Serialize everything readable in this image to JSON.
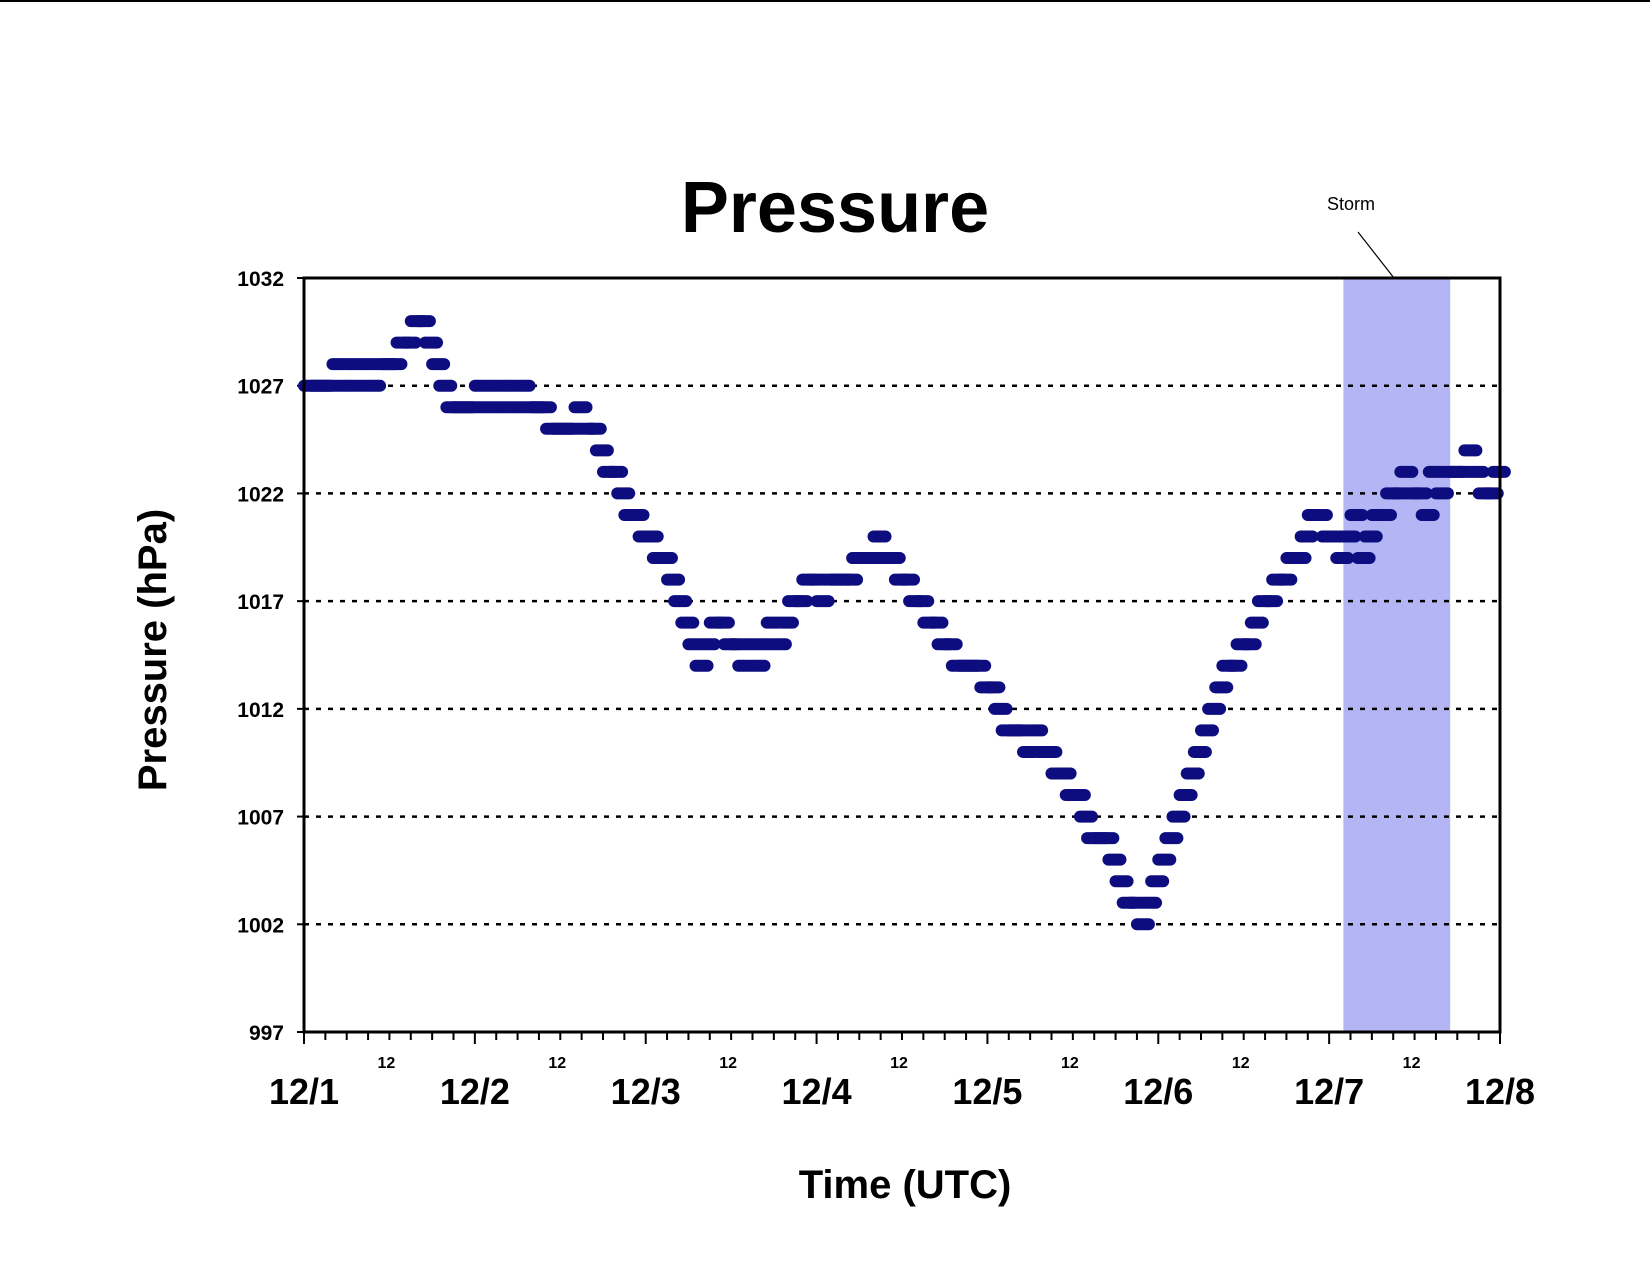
{
  "chart_data": {
    "type": "scatter",
    "title": "Pressure",
    "xlabel": "Time (UTC)",
    "ylabel": "Pressure (hPa)",
    "ylim": [
      997,
      1032
    ],
    "yticks": [
      "997",
      "1002",
      "1007",
      "1012",
      "1017",
      "1022",
      "1027",
      "1032"
    ],
    "y_gridlines": [
      1002,
      1007,
      1012,
      1017,
      1022,
      1027
    ],
    "grid": "horizontal dashed",
    "xlim": [
      "12/1 00",
      "12/8 00"
    ],
    "x_date_labels": [
      "12/1",
      "12/2",
      "12/3",
      "12/4",
      "12/5",
      "12/6",
      "12/7",
      "12/8"
    ],
    "x_hour_label": "12",
    "marker_color": "#0d0d80",
    "storm_shading": {
      "label": "Storm",
      "start": "12/7 02",
      "end": "12/7 17",
      "color": "#b3b5f5"
    },
    "series": [
      {
        "points": [
          [
            "12/1 00",
            1027
          ],
          [
            "12/1 01",
            1027
          ],
          [
            "12/1 02",
            1027
          ],
          [
            "12/1 03",
            1027
          ],
          [
            "12/1 04",
            1028
          ],
          [
            "12/1 05",
            1027
          ],
          [
            "12/1 06",
            1028
          ],
          [
            "12/1 07",
            1027
          ],
          [
            "12/1 08",
            1028
          ],
          [
            "12/1 09",
            1027
          ],
          [
            "12/1 10",
            1028
          ],
          [
            "12/1 11",
            1028
          ],
          [
            "12/1 12",
            1028
          ],
          [
            "12/1 13",
            1029
          ],
          [
            "12/1 14",
            1029
          ],
          [
            "12/1 15",
            1030
          ],
          [
            "12/1 16",
            1030
          ],
          [
            "12/1 17",
            1029
          ],
          [
            "12/1 18",
            1028
          ],
          [
            "12/1 19",
            1027
          ],
          [
            "12/1 20",
            1026
          ],
          [
            "12/1 21",
            1026
          ],
          [
            "12/1 22",
            1026
          ],
          [
            "12/1 23",
            1026
          ],
          [
            "12/2 00",
            1027
          ],
          [
            "12/2 01",
            1026
          ],
          [
            "12/2 02",
            1027
          ],
          [
            "12/2 03",
            1026
          ],
          [
            "12/2 04",
            1027
          ],
          [
            "12/2 05",
            1026
          ],
          [
            "12/2 06",
            1027
          ],
          [
            "12/2 07",
            1026
          ],
          [
            "12/2 08",
            1026
          ],
          [
            "12/2 09",
            1026
          ],
          [
            "12/2 10",
            1025
          ],
          [
            "12/2 11",
            1025
          ],
          [
            "12/2 12",
            1025
          ],
          [
            "12/2 13",
            1025
          ],
          [
            "12/2 14",
            1026
          ],
          [
            "12/2 15",
            1025
          ],
          [
            "12/2 16",
            1025
          ],
          [
            "12/2 17",
            1024
          ],
          [
            "12/2 18",
            1023
          ],
          [
            "12/2 19",
            1023
          ],
          [
            "12/2 20",
            1022
          ],
          [
            "12/2 21",
            1021
          ],
          [
            "12/2 22",
            1021
          ],
          [
            "12/2 23",
            1020
          ],
          [
            "12/3 00",
            1020
          ],
          [
            "12/3 01",
            1019
          ],
          [
            "12/3 02",
            1019
          ],
          [
            "12/3 03",
            1018
          ],
          [
            "12/3 04",
            1017
          ],
          [
            "12/3 05",
            1016
          ],
          [
            "12/3 06",
            1015
          ],
          [
            "12/3 07",
            1014
          ],
          [
            "12/3 08",
            1015
          ],
          [
            "12/3 09",
            1016
          ],
          [
            "12/3 10",
            1016
          ],
          [
            "12/3 11",
            1015
          ],
          [
            "12/3 12",
            1015
          ],
          [
            "12/3 13",
            1014
          ],
          [
            "12/3 14",
            1015
          ],
          [
            "12/3 15",
            1014
          ],
          [
            "12/3 16",
            1015
          ],
          [
            "12/3 17",
            1016
          ],
          [
            "12/3 18",
            1015
          ],
          [
            "12/3 19",
            1016
          ],
          [
            "12/3 20",
            1017
          ],
          [
            "12/3 21",
            1017
          ],
          [
            "12/3 22",
            1018
          ],
          [
            "12/3 23",
            1018
          ],
          [
            "12/4 00",
            1017
          ],
          [
            "12/4 01",
            1018
          ],
          [
            "12/4 02",
            1018
          ],
          [
            "12/4 03",
            1018
          ],
          [
            "12/4 04",
            1018
          ],
          [
            "12/4 05",
            1019
          ],
          [
            "12/4 06",
            1019
          ],
          [
            "12/4 07",
            1019
          ],
          [
            "12/4 08",
            1020
          ],
          [
            "12/4 09",
            1019
          ],
          [
            "12/4 10",
            1019
          ],
          [
            "12/4 11",
            1018
          ],
          [
            "12/4 12",
            1018
          ],
          [
            "12/4 13",
            1017
          ],
          [
            "12/4 14",
            1017
          ],
          [
            "12/4 15",
            1016
          ],
          [
            "12/4 16",
            1016
          ],
          [
            "12/4 17",
            1015
          ],
          [
            "12/4 18",
            1015
          ],
          [
            "12/4 19",
            1014
          ],
          [
            "12/4 20",
            1014
          ],
          [
            "12/4 21",
            1014
          ],
          [
            "12/4 22",
            1014
          ],
          [
            "12/4 23",
            1013
          ],
          [
            "12/5 00",
            1013
          ],
          [
            "12/5 01",
            1012
          ],
          [
            "12/5 02",
            1011
          ],
          [
            "12/5 03",
            1011
          ],
          [
            "12/5 04",
            1011
          ],
          [
            "12/5 05",
            1010
          ],
          [
            "12/5 06",
            1011
          ],
          [
            "12/5 07",
            1010
          ],
          [
            "12/5 08",
            1010
          ],
          [
            "12/5 09",
            1009
          ],
          [
            "12/5 10",
            1009
          ],
          [
            "12/5 11",
            1008
          ],
          [
            "12/5 12",
            1008
          ],
          [
            "12/5 13",
            1007
          ],
          [
            "12/5 14",
            1006
          ],
          [
            "12/5 15",
            1006
          ],
          [
            "12/5 16",
            1006
          ],
          [
            "12/5 17",
            1005
          ],
          [
            "12/5 18",
            1004
          ],
          [
            "12/5 19",
            1003
          ],
          [
            "12/5 20",
            1003
          ],
          [
            "12/5 21",
            1002
          ],
          [
            "12/5 22",
            1003
          ],
          [
            "12/5 23",
            1004
          ],
          [
            "12/6 00",
            1005
          ],
          [
            "12/6 01",
            1006
          ],
          [
            "12/6 02",
            1007
          ],
          [
            "12/6 03",
            1008
          ],
          [
            "12/6 04",
            1009
          ],
          [
            "12/6 05",
            1010
          ],
          [
            "12/6 06",
            1011
          ],
          [
            "12/6 07",
            1012
          ],
          [
            "12/6 08",
            1013
          ],
          [
            "12/6 09",
            1014
          ],
          [
            "12/6 10",
            1014
          ],
          [
            "12/6 11",
            1015
          ],
          [
            "12/6 12",
            1015
          ],
          [
            "12/6 13",
            1016
          ],
          [
            "12/6 14",
            1017
          ],
          [
            "12/6 15",
            1017
          ],
          [
            "12/6 16",
            1018
          ],
          [
            "12/6 17",
            1018
          ],
          [
            "12/6 18",
            1019
          ],
          [
            "12/6 19",
            1019
          ],
          [
            "12/6 20",
            1020
          ],
          [
            "12/6 21",
            1021
          ],
          [
            "12/6 22",
            1021
          ],
          [
            "12/6 23",
            1020
          ],
          [
            "12/7 00",
            1020
          ],
          [
            "12/7 01",
            1019
          ],
          [
            "12/7 02",
            1020
          ],
          [
            "12/7 03",
            1021
          ],
          [
            "12/7 04",
            1019
          ],
          [
            "12/7 05",
            1020
          ],
          [
            "12/7 06",
            1021
          ],
          [
            "12/7 07",
            1021
          ],
          [
            "12/7 08",
            1022
          ],
          [
            "12/7 09",
            1022
          ],
          [
            "12/7 10",
            1023
          ],
          [
            "12/7 11",
            1022
          ],
          [
            "12/7 12",
            1022
          ],
          [
            "12/7 13",
            1021
          ],
          [
            "12/7 14",
            1023
          ],
          [
            "12/7 15",
            1022
          ],
          [
            "12/7 16",
            1023
          ],
          [
            "12/7 17",
            1023
          ],
          [
            "12/7 18",
            1023
          ],
          [
            "12/7 19",
            1024
          ],
          [
            "12/7 20",
            1023
          ],
          [
            "12/7 21",
            1022
          ],
          [
            "12/7 22",
            1022
          ],
          [
            "12/7 23",
            1023
          ],
          [
            "12/8 00",
            1023
          ]
        ]
      }
    ]
  }
}
